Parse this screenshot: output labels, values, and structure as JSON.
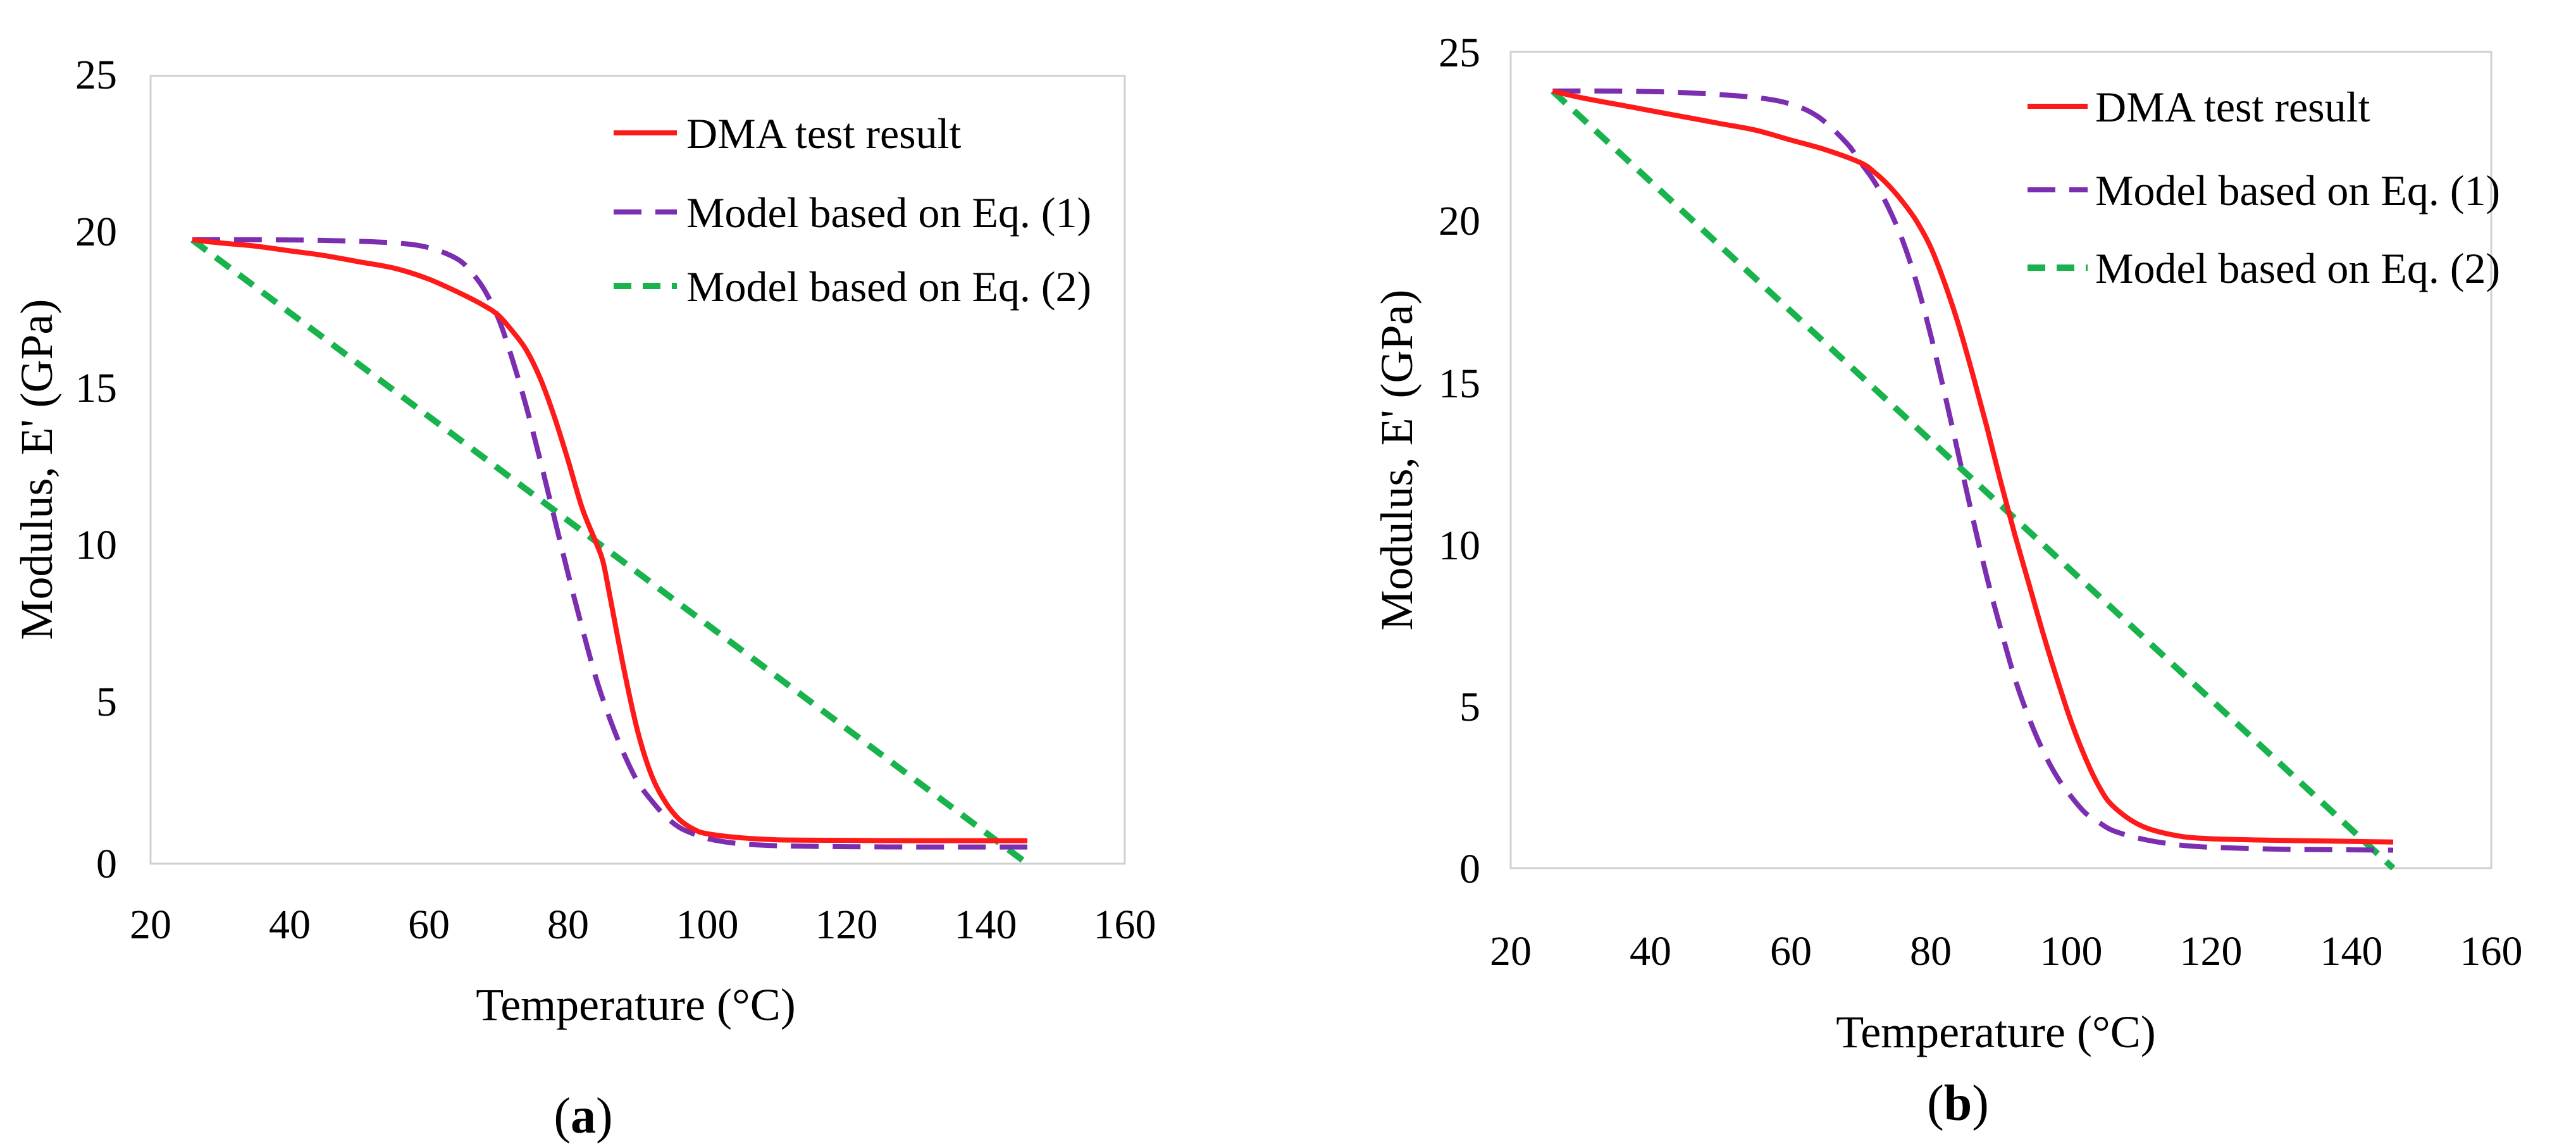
{
  "colors": {
    "dma": "#ff1a1a",
    "eq1": "#7b2fb0",
    "eq2": "#19b34d",
    "axis": "#d0d0d0"
  },
  "chart_data": [
    {
      "type": "line",
      "panel_label": {
        "open": "(",
        "letter": "a",
        "close": ")"
      },
      "xlabel": "Temperature (°C)",
      "ylabel": "Modulus, E' (GPa)",
      "xlim": [
        20,
        160
      ],
      "ylim": [
        0,
        25
      ],
      "xticks": [
        "20",
        "40",
        "60",
        "80",
        "100",
        "120",
        "140",
        "160"
      ],
      "yticks": [
        "0",
        "5",
        "10",
        "15",
        "20",
        "25"
      ],
      "legend_position": "top-right",
      "series": [
        {
          "name": "DMA test result",
          "style": "solid",
          "color_key": "dma",
          "x": [
            26,
            30,
            35,
            40,
            45,
            50,
            55,
            60,
            65,
            68,
            70,
            72,
            74,
            76,
            78,
            80,
            82,
            84,
            85,
            86,
            88,
            90,
            92,
            94,
            96,
            98,
            100,
            105,
            110,
            120,
            130,
            140,
            146
          ],
          "y": [
            19.8,
            19.7,
            19.6,
            19.45,
            19.3,
            19.1,
            18.9,
            18.55,
            18.05,
            17.7,
            17.4,
            16.9,
            16.3,
            15.4,
            14.2,
            12.8,
            11.3,
            10.2,
            9.6,
            8.5,
            6.2,
            4.2,
            2.8,
            1.95,
            1.4,
            1.1,
            0.95,
            0.82,
            0.76,
            0.74,
            0.73,
            0.73,
            0.73
          ]
        },
        {
          "name": "Model based on Eq. (1)",
          "style": "dash",
          "color_key": "eq1",
          "x": [
            26,
            35,
            45,
            55,
            60,
            64,
            66,
            68,
            70,
            72,
            74,
            76,
            78,
            80,
            82,
            84,
            86,
            88,
            90,
            92,
            94,
            96,
            98,
            100,
            104,
            110,
            120,
            130,
            140,
            146
          ],
          "y": [
            19.8,
            19.8,
            19.78,
            19.7,
            19.55,
            19.2,
            18.8,
            18.2,
            17.3,
            16.0,
            14.5,
            12.8,
            11.0,
            9.2,
            7.5,
            5.9,
            4.6,
            3.5,
            2.6,
            2.0,
            1.5,
            1.15,
            0.95,
            0.8,
            0.65,
            0.57,
            0.54,
            0.53,
            0.53,
            0.53
          ]
        },
        {
          "name": "Model based on Eq. (2)",
          "style": "short-dash",
          "color_key": "eq2",
          "x": [
            26,
            146
          ],
          "y": [
            19.8,
            0.0
          ]
        }
      ]
    },
    {
      "type": "line",
      "panel_label": {
        "open": "(",
        "letter": "b",
        "close": ")"
      },
      "xlabel": "Temperature (°C)",
      "ylabel": "Modulus, E' (GPa)",
      "xlim": [
        20,
        160
      ],
      "ylim": [
        0,
        25
      ],
      "xticks": [
        "20",
        "40",
        "60",
        "80",
        "100",
        "120",
        "140",
        "160"
      ],
      "yticks": [
        "0",
        "5",
        "10",
        "15",
        "20",
        "25"
      ],
      "legend_position": "top-right",
      "series": [
        {
          "name": "DMA test result",
          "style": "solid",
          "color_key": "dma",
          "x": [
            26,
            30,
            35,
            40,
            45,
            50,
            55,
            60,
            65,
            70,
            72,
            74,
            76,
            78,
            80,
            82,
            84,
            86,
            88,
            90,
            92,
            94,
            96,
            98,
            100,
            102,
            104,
            106,
            110,
            115,
            120,
            130,
            140,
            146
          ],
          "y": [
            23.8,
            23.6,
            23.4,
            23.2,
            23.0,
            22.8,
            22.6,
            22.3,
            22.0,
            21.6,
            21.3,
            20.9,
            20.4,
            19.8,
            19.0,
            17.9,
            16.6,
            15.1,
            13.5,
            11.8,
            10.2,
            8.7,
            7.2,
            5.8,
            4.5,
            3.4,
            2.5,
            1.9,
            1.3,
            1.0,
            0.9,
            0.85,
            0.82,
            0.8
          ]
        },
        {
          "name": "Model based on Eq. (1)",
          "style": "dash",
          "color_key": "eq1",
          "x": [
            26,
            35,
            45,
            55,
            60,
            64,
            68,
            70,
            72,
            74,
            76,
            78,
            80,
            82,
            84,
            86,
            88,
            90,
            92,
            94,
            96,
            98,
            100,
            102,
            104,
            106,
            110,
            115,
            120,
            130,
            140,
            146
          ],
          "y": [
            23.8,
            23.8,
            23.75,
            23.6,
            23.4,
            23.0,
            22.2,
            21.6,
            21.0,
            20.2,
            19.2,
            17.9,
            16.3,
            14.5,
            12.6,
            10.7,
            8.9,
            7.3,
            5.8,
            4.6,
            3.6,
            2.8,
            2.2,
            1.7,
            1.4,
            1.15,
            0.9,
            0.72,
            0.64,
            0.58,
            0.56,
            0.55
          ]
        },
        {
          "name": "Model based on Eq. (2)",
          "style": "short-dash",
          "color_key": "eq2",
          "x": [
            26,
            146
          ],
          "y": [
            23.8,
            0.0
          ]
        }
      ]
    }
  ]
}
